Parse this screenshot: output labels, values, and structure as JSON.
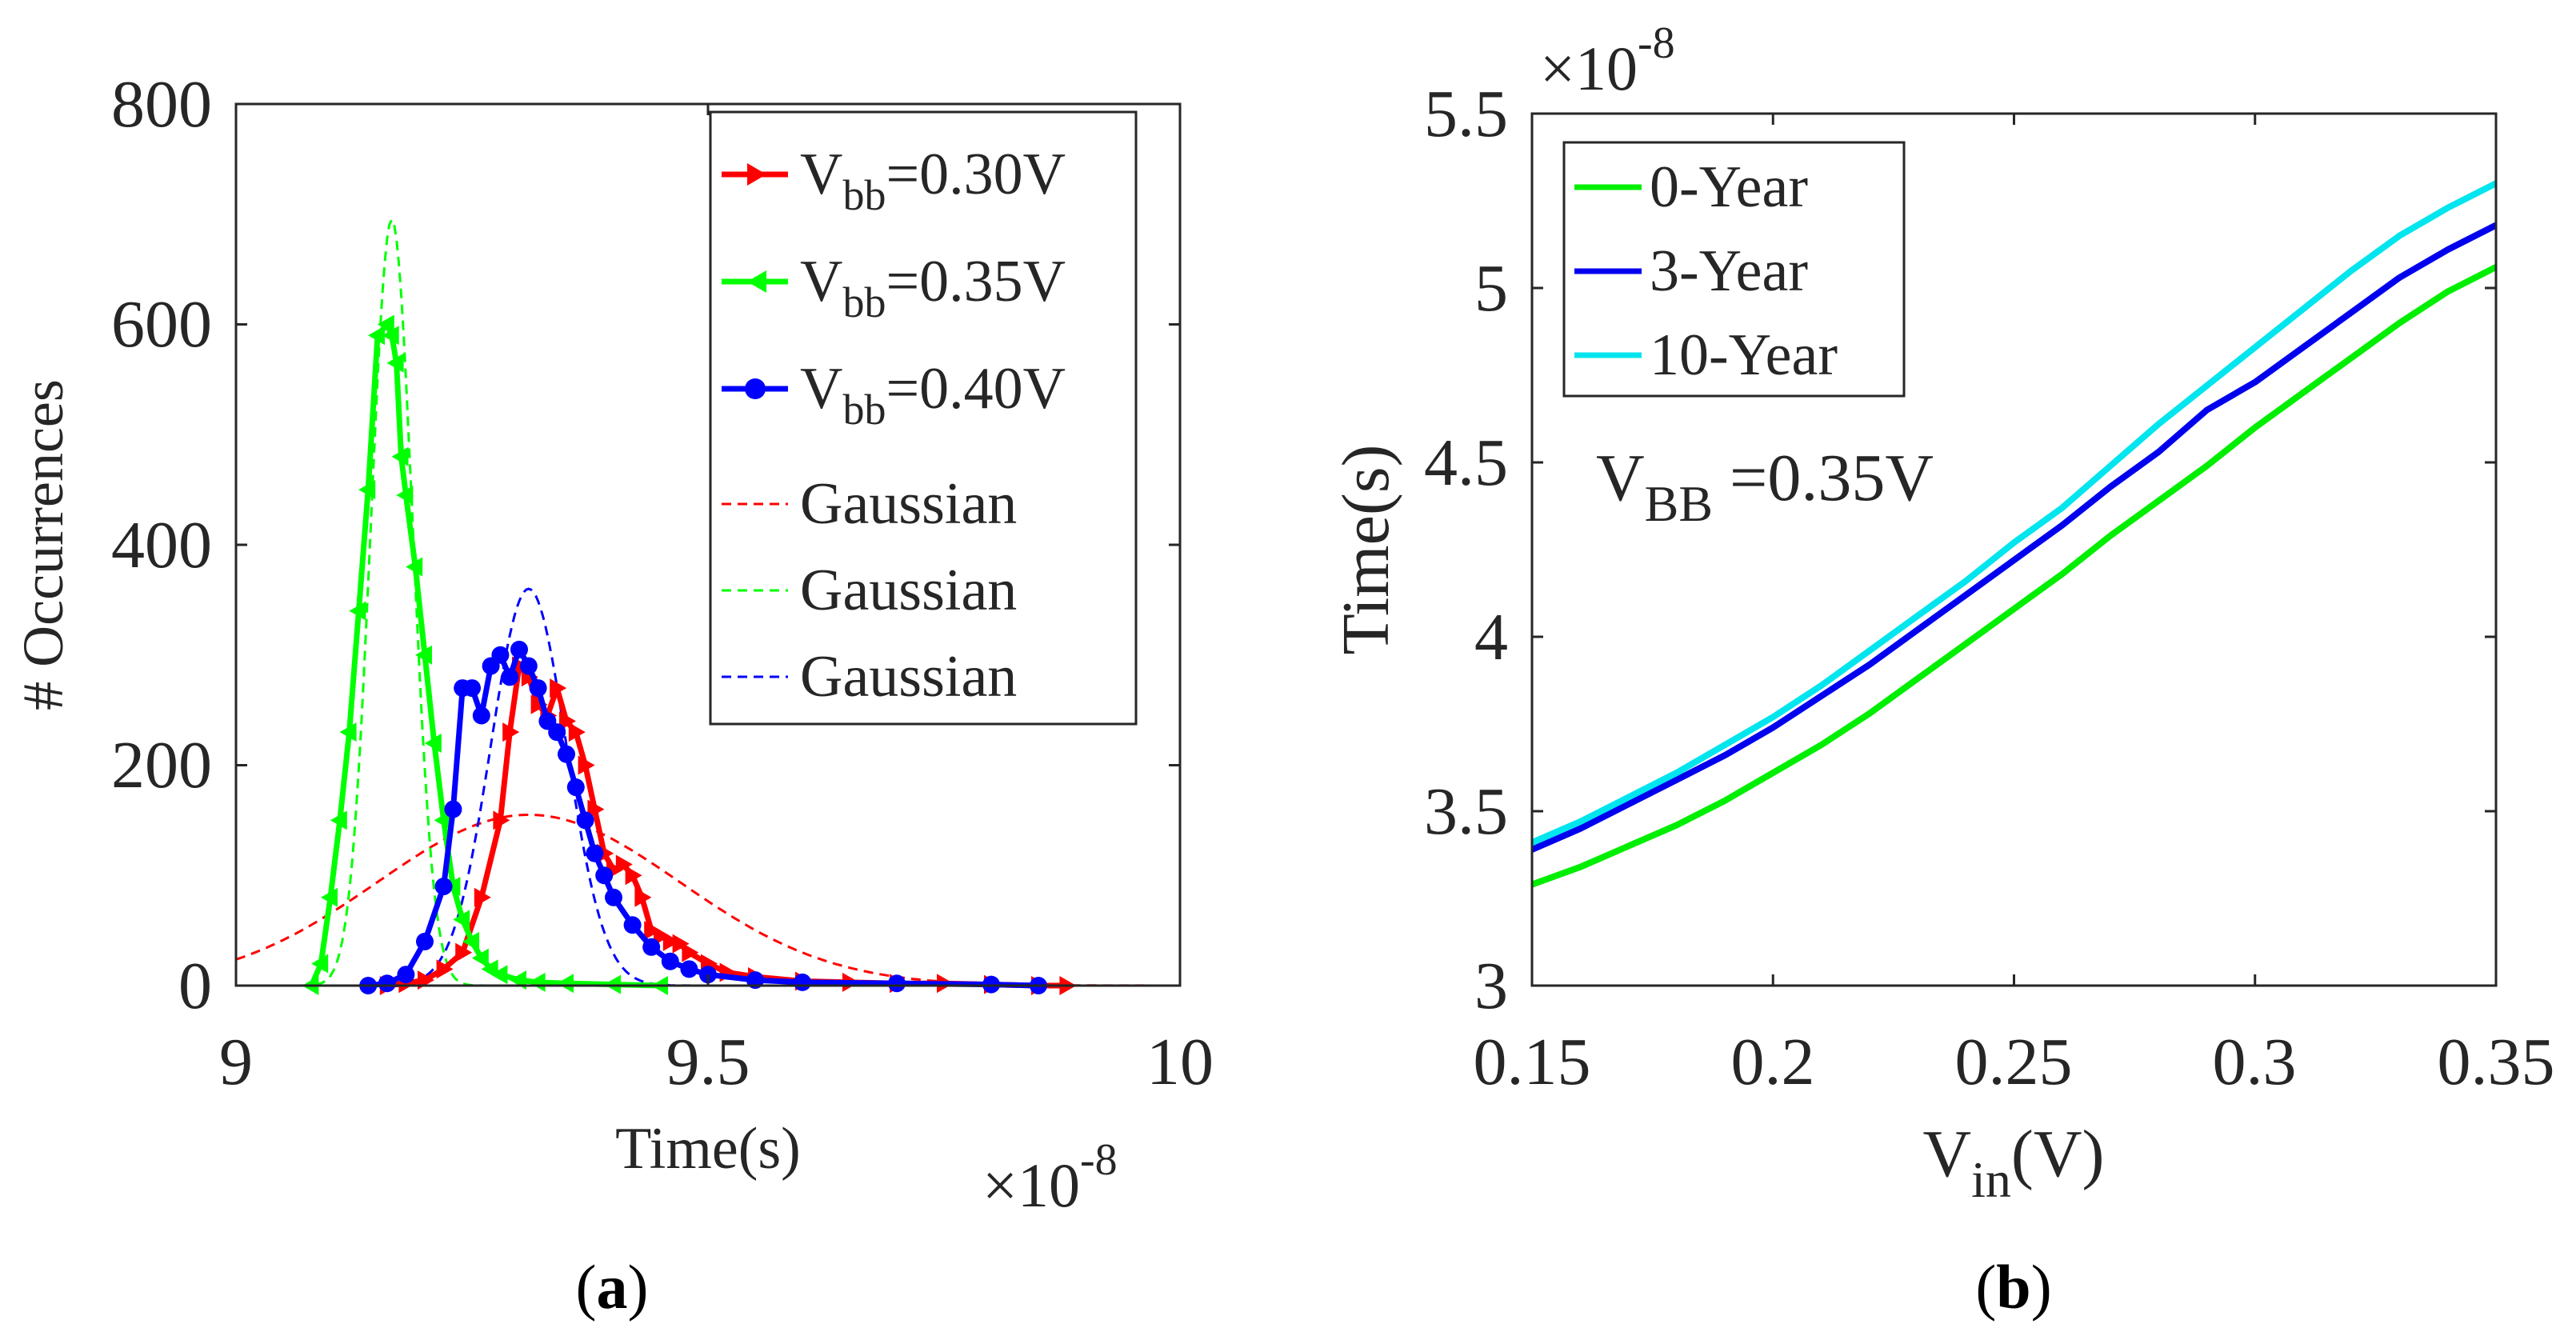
{
  "chart_data": [
    {
      "type": "line",
      "panel": "a",
      "caption_label": "a",
      "xlabel": "Time(s)",
      "ylabel": "# Occurrences",
      "x_exponent_label": "×10",
      "x_exponent_power": "-8",
      "xlim": [
        9,
        10
      ],
      "ylim": [
        0,
        800
      ],
      "x_ticks": [
        9,
        9.5,
        10
      ],
      "x_tick_labels": [
        "9",
        "9.5",
        "10"
      ],
      "y_ticks": [
        0,
        200,
        400,
        600,
        800
      ],
      "y_tick_labels": [
        "0",
        "200",
        "400",
        "600",
        "800"
      ],
      "legend_position": "top-right",
      "series": [
        {
          "name": "Vbb=0.30V",
          "legend_main": "V",
          "legend_sub": "bb",
          "legend_rest": "=0.30V",
          "color": "#ff0000",
          "marker": "triangle-right",
          "x": [
            9.16,
            9.18,
            9.2,
            9.22,
            9.24,
            9.26,
            9.28,
            9.29,
            9.3,
            9.31,
            9.32,
            9.33,
            9.34,
            9.35,
            9.36,
            9.37,
            9.38,
            9.39,
            9.4,
            9.41,
            9.42,
            9.43,
            9.44,
            9.45,
            9.46,
            9.47,
            9.48,
            9.5,
            9.52,
            9.55,
            9.6,
            9.65,
            9.7,
            9.75,
            9.8,
            9.85,
            9.88
          ],
          "y": [
            0,
            2,
            5,
            15,
            30,
            80,
            150,
            230,
            290,
            280,
            255,
            245,
            270,
            240,
            230,
            200,
            160,
            120,
            105,
            110,
            100,
            80,
            50,
            45,
            40,
            38,
            30,
            20,
            12,
            8,
            4,
            3,
            2,
            2,
            1,
            0,
            0
          ]
        },
        {
          "name": "Vbb=0.35V",
          "legend_main": "V",
          "legend_sub": "bb",
          "legend_rest": "=0.35V",
          "color": "#00ff00",
          "marker": "triangle-left",
          "x": [
            9.08,
            9.09,
            9.1,
            9.11,
            9.12,
            9.13,
            9.14,
            9.15,
            9.16,
            9.165,
            9.17,
            9.175,
            9.18,
            9.19,
            9.2,
            9.21,
            9.22,
            9.23,
            9.24,
            9.25,
            9.26,
            9.27,
            9.28,
            9.3,
            9.32,
            9.35,
            9.4,
            9.45
          ],
          "y": [
            0,
            20,
            80,
            150,
            230,
            340,
            450,
            590,
            600,
            590,
            565,
            480,
            445,
            380,
            300,
            220,
            150,
            90,
            60,
            40,
            25,
            15,
            10,
            5,
            3,
            2,
            1,
            0
          ]
        },
        {
          "name": "Vbb=0.40V",
          "legend_main": "V",
          "legend_sub": "bb",
          "legend_rest": "=0.40V",
          "color": "#0000ff",
          "marker": "circle",
          "x": [
            9.14,
            9.16,
            9.18,
            9.2,
            9.22,
            9.23,
            9.24,
            9.25,
            9.26,
            9.27,
            9.28,
            9.29,
            9.3,
            9.31,
            9.32,
            9.33,
            9.34,
            9.35,
            9.36,
            9.37,
            9.38,
            9.39,
            9.4,
            9.42,
            9.44,
            9.46,
            9.48,
            9.5,
            9.55,
            9.6,
            9.7,
            9.8,
            9.85
          ],
          "y": [
            0,
            2,
            10,
            40,
            90,
            160,
            270,
            270,
            245,
            290,
            300,
            280,
            305,
            290,
            270,
            240,
            230,
            210,
            180,
            150,
            120,
            100,
            80,
            55,
            35,
            22,
            15,
            10,
            5,
            3,
            2,
            1,
            0
          ]
        }
      ],
      "gaussians": [
        {
          "name": "Gaussian",
          "color": "#ff0000",
          "mean": 9.31,
          "sigma": 0.16,
          "peak": 155
        },
        {
          "name": "Gaussian",
          "color": "#00ff00",
          "mean": 9.165,
          "sigma": 0.022,
          "peak": 695
        },
        {
          "name": "Gaussian",
          "color": "#0000ff",
          "mean": 9.31,
          "sigma": 0.04,
          "peak": 360
        }
      ]
    },
    {
      "type": "line",
      "panel": "b",
      "caption_label": "b",
      "xlabel_main": "V",
      "xlabel_sub": "in",
      "xlabel_rest": "(V)",
      "ylabel": "Time(s)",
      "y_exponent_label": "×10",
      "y_exponent_power": "-8",
      "annotation_main": "V",
      "annotation_sub": "BB",
      "annotation_rest": " =0.35V",
      "xlim": [
        0.15,
        0.35
      ],
      "ylim": [
        3,
        5.5
      ],
      "x_ticks": [
        0.15,
        0.2,
        0.25,
        0.3,
        0.35
      ],
      "x_tick_labels": [
        "0.15",
        "0.2",
        "0.25",
        "0.3",
        "0.35"
      ],
      "y_ticks": [
        3,
        3.5,
        4,
        4.5,
        5,
        5.5
      ],
      "y_tick_labels": [
        "3",
        "3.5",
        "4",
        "4.5",
        "5",
        "5.5"
      ],
      "legend_position": "top-left",
      "series": [
        {
          "name": "0-Year",
          "color": "#00ee00",
          "x": [
            0.15,
            0.16,
            0.17,
            0.18,
            0.19,
            0.2,
            0.21,
            0.22,
            0.23,
            0.24,
            0.25,
            0.26,
            0.27,
            0.28,
            0.29,
            0.3,
            0.31,
            0.32,
            0.33,
            0.34,
            0.35
          ],
          "y": [
            3.29,
            3.34,
            3.4,
            3.46,
            3.53,
            3.61,
            3.69,
            3.78,
            3.88,
            3.98,
            4.08,
            4.18,
            4.29,
            4.39,
            4.49,
            4.6,
            4.7,
            4.8,
            4.9,
            4.99,
            5.06
          ]
        },
        {
          "name": "3-Year",
          "color": "#0000ee",
          "x": [
            0.15,
            0.16,
            0.17,
            0.18,
            0.19,
            0.2,
            0.21,
            0.22,
            0.23,
            0.24,
            0.25,
            0.26,
            0.27,
            0.28,
            0.29,
            0.3,
            0.31,
            0.32,
            0.33,
            0.34,
            0.35
          ],
          "y": [
            3.39,
            3.45,
            3.52,
            3.59,
            3.66,
            3.74,
            3.83,
            3.92,
            4.02,
            4.12,
            4.22,
            4.32,
            4.43,
            4.53,
            4.65,
            4.73,
            4.83,
            4.93,
            5.03,
            5.11,
            5.18
          ]
        },
        {
          "name": "10-Year",
          "color": "#00e5ee",
          "x": [
            0.15,
            0.16,
            0.17,
            0.18,
            0.19,
            0.2,
            0.21,
            0.22,
            0.23,
            0.24,
            0.25,
            0.26,
            0.27,
            0.28,
            0.29,
            0.3,
            0.31,
            0.32,
            0.33,
            0.34,
            0.35
          ],
          "y": [
            3.41,
            3.47,
            3.54,
            3.61,
            3.69,
            3.77,
            3.86,
            3.96,
            4.06,
            4.16,
            4.27,
            4.37,
            4.49,
            4.61,
            4.72,
            4.83,
            4.94,
            5.05,
            5.15,
            5.23,
            5.3
          ]
        }
      ]
    }
  ]
}
